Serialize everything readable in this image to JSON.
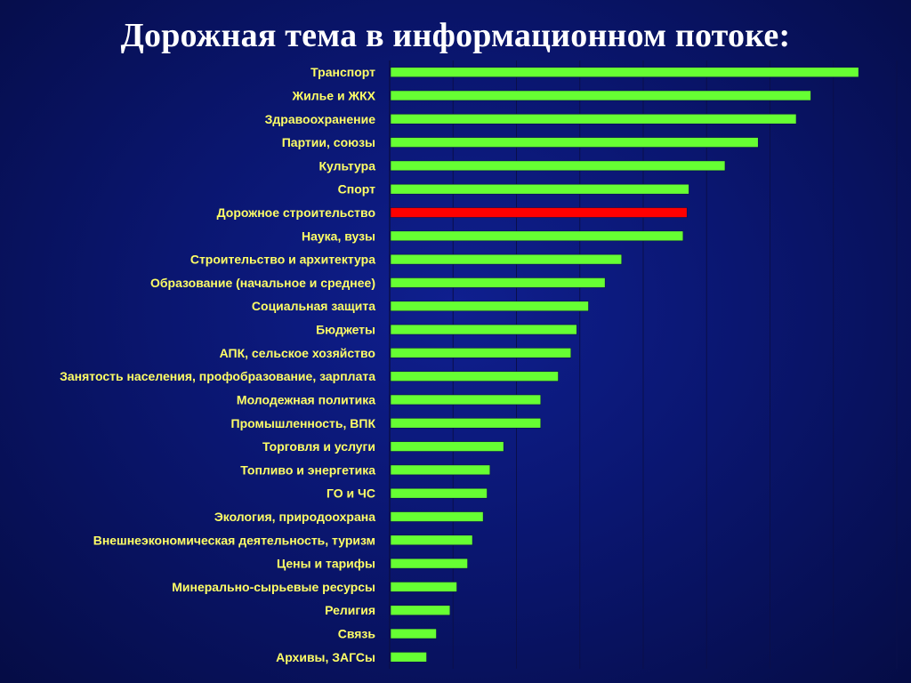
{
  "title": "Дорожная тема в информационном потоке:",
  "chart_data": {
    "type": "bar",
    "orientation": "horizontal",
    "title": "Дорожная тема в информационном потоке:",
    "xlabel": "",
    "ylabel": "",
    "xlim": [
      0,
      520
    ],
    "grid": true,
    "legend": "none",
    "bar_color": "#66ff33",
    "highlight_color": "#ff0000",
    "highlight_category": "Дорожное строительство",
    "categories": [
      "Транспорт",
      "Жилье и ЖКХ",
      "Здравоохранение",
      "Партии, союзы",
      "Культура",
      "Спорт",
      "Дорожное строительство",
      "Наука, вузы",
      "Строительство и архитектура",
      "Образование (начальное и среднее)",
      "Социальная защита",
      "Бюджеты",
      "АПК, сельское хозяйство",
      "Занятость населения, профобразование, зарплата",
      "Молодежная политика",
      "Промышленность, ВПК",
      "Торговля и услуги",
      "Топливо и энергетика",
      "ГО и ЧС",
      "Экология, природоохрана",
      "Внешнеэкономическая деятельность, туризм",
      "Цены и тарифы",
      "Минерально-сырьевые ресурсы",
      "Религия",
      "Связь",
      "Архивы, ЗАГСы"
    ],
    "values": [
      480,
      431,
      416,
      377,
      343,
      306,
      304,
      300,
      237,
      220,
      203,
      191,
      185,
      172,
      154,
      154,
      116,
      102,
      99,
      95,
      84,
      79,
      68,
      61,
      47,
      37
    ]
  }
}
